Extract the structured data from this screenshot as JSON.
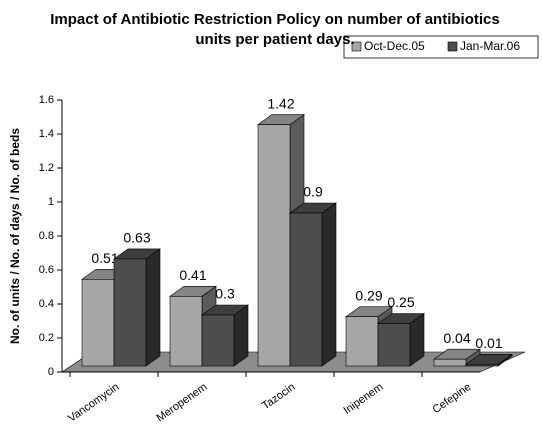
{
  "chart_data": {
    "type": "bar3d",
    "title": "Impact of Antibiotic Restriction Policy on number of antibiotics units per patient days.",
    "y_label": "No. of units / No. of days / No. of beds",
    "categories": [
      "Vancomycin",
      "Meropenem",
      "Tazocin",
      "Inipenem",
      "Cefepine"
    ],
    "series": [
      {
        "name": "Oct-Dec.05",
        "color": "#a6a6a6",
        "values": [
          0.51,
          0.41,
          1.42,
          0.29,
          0.04
        ]
      },
      {
        "name": "Jan-Mar.06",
        "color": "#4d4d4d",
        "values": [
          0.63,
          0.3,
          0.9,
          0.25,
          0.01
        ]
      }
    ],
    "ylim": [
      0,
      1.6
    ],
    "yticks": [
      0,
      0.2,
      0.4,
      0.6,
      0.8,
      1,
      1.2,
      1.4,
      1.6
    ],
    "legend": "top-right",
    "grid": false
  }
}
